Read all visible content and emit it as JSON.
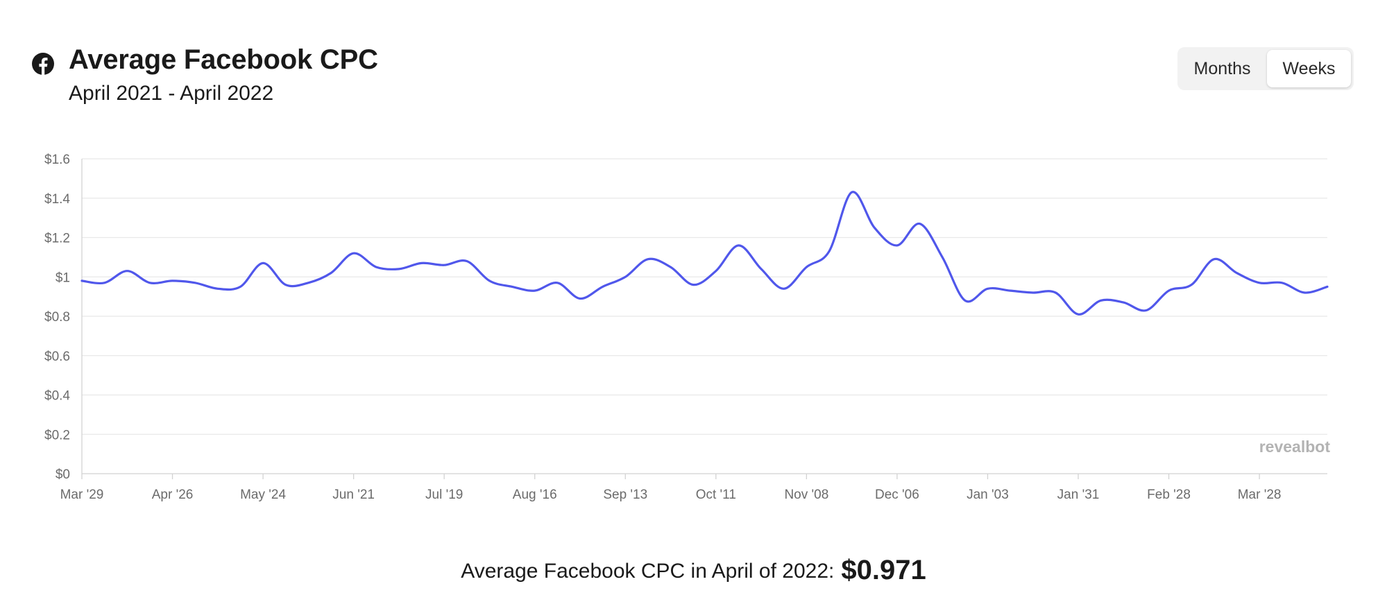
{
  "header": {
    "icon": "facebook-icon",
    "title": "Average Facebook CPC",
    "subtitle": "April 2021 - April 2022"
  },
  "toggle": {
    "options": [
      "Months",
      "Weeks"
    ],
    "selected": "Weeks"
  },
  "chart_data": {
    "type": "line",
    "title": "Average Facebook CPC",
    "subtitle": "April 2021 - April 2022",
    "xlabel": "",
    "ylabel": "",
    "ylim": [
      0,
      1.6
    ],
    "y_ticks": [
      "$0",
      "$0.2",
      "$0.4",
      "$0.6",
      "$0.8",
      "$1",
      "$1.2",
      "$1.4",
      "$1.6"
    ],
    "x_ticks": [
      "Mar '29",
      "Apr '26",
      "May '24",
      "Jun '21",
      "Jul '19",
      "Aug '16",
      "Sep '13",
      "Oct '11",
      "Nov '08",
      "Dec '06",
      "Jan '03",
      "Jan '31",
      "Feb '28",
      "Mar '28"
    ],
    "grid": true,
    "line_color": "#5057eb",
    "series": [
      {
        "values": [
          0.98,
          0.97,
          1.03,
          0.97,
          0.98,
          0.97,
          0.94,
          0.95,
          1.07,
          0.96,
          0.97,
          1.02,
          1.12,
          1.05,
          1.04,
          1.07,
          1.06,
          1.08,
          0.98,
          0.95,
          0.93,
          0.97,
          0.89,
          0.95,
          1.0,
          1.09,
          1.05,
          0.96,
          1.03,
          1.16,
          1.04,
          0.94,
          1.05,
          1.13,
          1.43,
          1.25,
          1.16,
          1.27,
          1.1,
          0.88,
          0.94,
          0.93,
          0.92,
          0.92,
          0.81,
          0.88,
          0.87,
          0.83,
          0.93,
          0.96,
          1.09,
          1.02,
          0.97,
          0.97,
          0.92,
          0.95
        ]
      }
    ]
  },
  "watermark": "revealbot",
  "footer": {
    "label": "Average Facebook CPC in April of 2022:",
    "value": "$0.971"
  }
}
